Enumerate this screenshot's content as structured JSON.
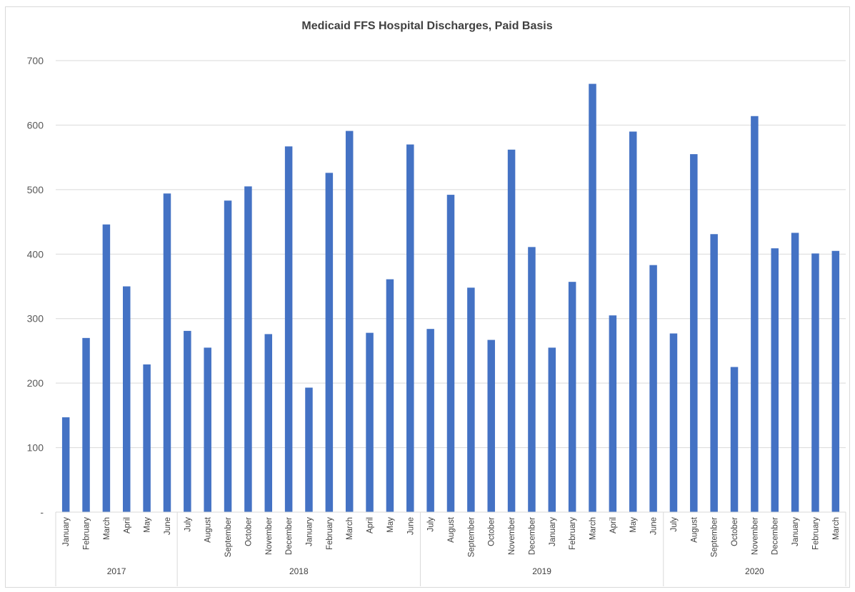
{
  "chart_data": {
    "type": "bar",
    "title": "Medicaid FFS Hospital Discharges, Paid Basis",
    "xlabel": "",
    "ylabel": "",
    "ylim": [
      0,
      700
    ],
    "yticks": [
      0,
      100,
      200,
      300,
      400,
      500,
      600,
      700
    ],
    "ytick_labels": [
      "-",
      "100",
      "200",
      "300",
      "400",
      "500",
      "600",
      "700"
    ],
    "grid": true,
    "legend": "none",
    "bar_color": "#4472c4",
    "groups": [
      {
        "label": "2017",
        "count": 6
      },
      {
        "label": "2018",
        "count": 12
      },
      {
        "label": "2019",
        "count": 12
      },
      {
        "label": "2020",
        "count": 9
      }
    ],
    "categories": [
      "January",
      "February",
      "March",
      "April",
      "May",
      "June",
      "July",
      "August",
      "September",
      "October",
      "November",
      "December",
      "January",
      "February",
      "March",
      "April",
      "May",
      "June",
      "July",
      "August",
      "September",
      "October",
      "November",
      "December",
      "January",
      "February",
      "March",
      "April",
      "May",
      "June",
      "July",
      "August",
      "September",
      "October",
      "November",
      "December",
      "January",
      "February",
      "March"
    ],
    "values": [
      147,
      270,
      446,
      350,
      229,
      494,
      281,
      255,
      483,
      505,
      276,
      567,
      193,
      526,
      591,
      278,
      361,
      570,
      284,
      492,
      348,
      267,
      562,
      411,
      255,
      357,
      664,
      305,
      590,
      383,
      277,
      555,
      431,
      225,
      614,
      409,
      433,
      401,
      405
    ]
  }
}
